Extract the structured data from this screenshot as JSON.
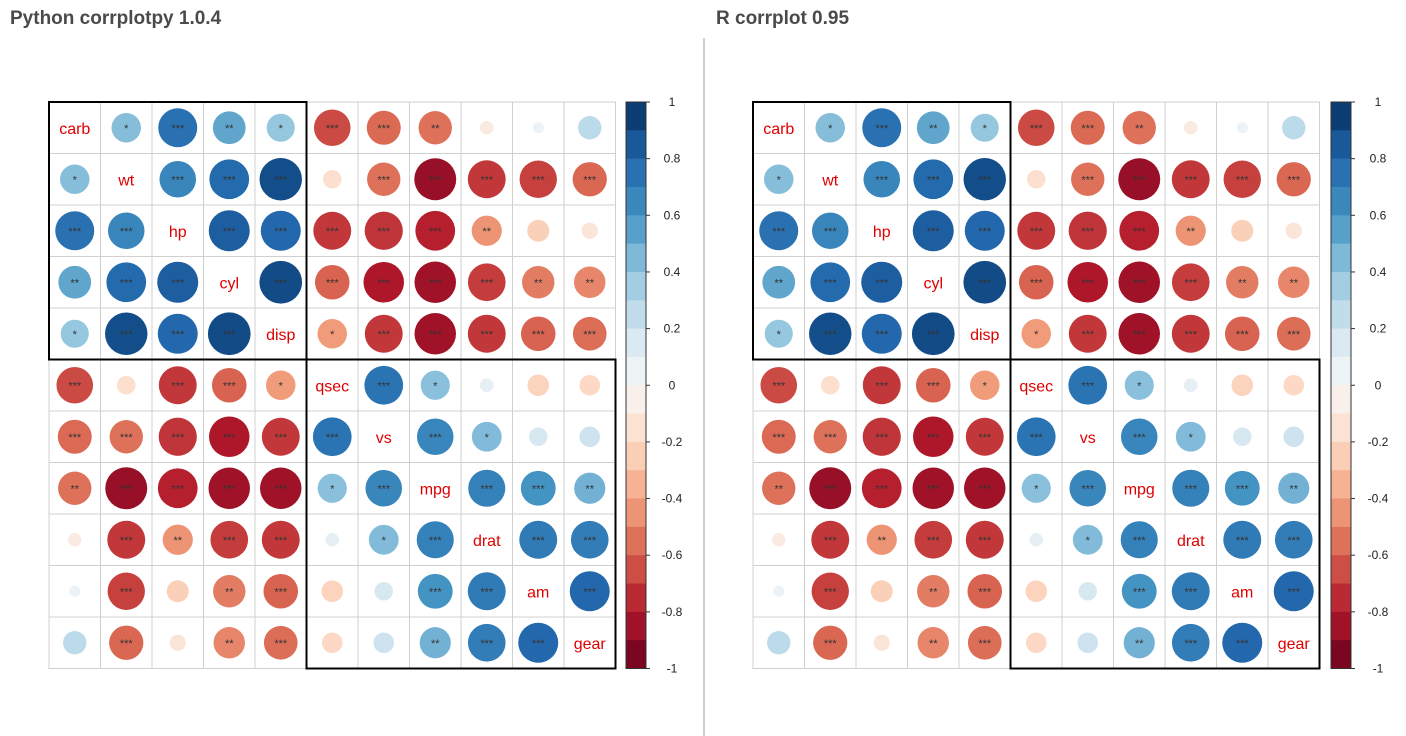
{
  "panels": [
    {
      "title": "Python corrplotpy 1.0.4"
    },
    {
      "title": "R corrplot 0.95"
    }
  ],
  "chart_data": [
    {
      "type": "heatmap",
      "variables": [
        "carb",
        "wt",
        "hp",
        "cyl",
        "disp",
        "qsec",
        "vs",
        "mpg",
        "drat",
        "am",
        "gear"
      ],
      "colorbar": {
        "ticks": [
          "1",
          "0.8",
          "0.6",
          "0.4",
          "0.2",
          "0",
          "-0.2",
          "-0.4",
          "-0.6",
          "-0.8",
          "-1"
        ],
        "range": [
          -1,
          1
        ]
      },
      "clusters": [
        [
          0,
          4
        ],
        [
          5,
          10
        ]
      ],
      "values": [
        [
          1,
          0.43,
          0.75,
          0.53,
          0.39,
          -0.66,
          -0.57,
          -0.55,
          -0.09,
          0.06,
          0.27
        ],
        [
          0.43,
          1,
          0.66,
          0.78,
          0.89,
          -0.17,
          -0.55,
          -0.87,
          -0.71,
          -0.69,
          -0.58
        ],
        [
          0.75,
          0.66,
          1,
          0.83,
          0.79,
          -0.71,
          -0.72,
          -0.78,
          -0.45,
          -0.24,
          -0.13
        ],
        [
          0.53,
          0.78,
          0.83,
          1,
          0.9,
          -0.59,
          -0.81,
          -0.85,
          -0.7,
          -0.52,
          -0.49
        ],
        [
          0.39,
          0.89,
          0.79,
          0.9,
          1,
          -0.43,
          -0.71,
          -0.85,
          -0.71,
          -0.59,
          -0.56
        ],
        [
          -0.66,
          -0.17,
          -0.71,
          -0.59,
          -0.43,
          1,
          0.74,
          0.42,
          0.09,
          -0.23,
          -0.21
        ],
        [
          -0.57,
          -0.55,
          -0.72,
          -0.81,
          -0.71,
          0.74,
          1,
          0.66,
          0.44,
          0.17,
          0.21
        ],
        [
          -0.55,
          -0.87,
          -0.78,
          -0.85,
          -0.85,
          0.42,
          0.66,
          1,
          0.68,
          0.6,
          0.48
        ],
        [
          -0.09,
          -0.71,
          -0.45,
          -0.7,
          -0.71,
          0.09,
          0.44,
          0.68,
          1,
          0.71,
          0.7
        ],
        [
          0.06,
          -0.69,
          -0.24,
          -0.52,
          -0.59,
          -0.23,
          0.17,
          0.6,
          0.71,
          1,
          0.79
        ],
        [
          0.27,
          -0.58,
          -0.13,
          -0.49,
          -0.56,
          -0.21,
          0.21,
          0.48,
          0.7,
          0.79,
          1
        ]
      ],
      "significance": [
        [
          "",
          "*",
          "***",
          "**",
          "*",
          "***",
          "***",
          "**",
          "",
          "",
          ""
        ],
        [
          "*",
          "",
          "***",
          "***",
          "***",
          "",
          "***",
          "***",
          "***",
          "***",
          "***"
        ],
        [
          "***",
          "***",
          "",
          "***",
          "***",
          "***",
          "***",
          "***",
          "**",
          "",
          ""
        ],
        [
          "**",
          "***",
          "***",
          "",
          "***",
          "***",
          "***",
          "***",
          "***",
          "**",
          "**"
        ],
        [
          "*",
          "***",
          "***",
          "***",
          "",
          "*",
          "***",
          "***",
          "***",
          "***",
          "***"
        ],
        [
          "***",
          "",
          "***",
          "***",
          "*",
          "",
          "***",
          "*",
          "",
          "",
          ""
        ],
        [
          "***",
          "***",
          "***",
          "***",
          "***",
          "***",
          "",
          "***",
          "*",
          "",
          ""
        ],
        [
          "**",
          "***",
          "***",
          "***",
          "***",
          "*",
          "***",
          "",
          "***",
          "***",
          "**"
        ],
        [
          "",
          "***",
          "**",
          "***",
          "***",
          "",
          "*",
          "***",
          "",
          "***",
          "***"
        ],
        [
          "",
          "***",
          "",
          "**",
          "***",
          "",
          "",
          "***",
          "***",
          "",
          "***"
        ],
        [
          "",
          "***",
          "",
          "**",
          "***",
          "",
          "",
          "**",
          "***",
          "***",
          ""
        ]
      ]
    },
    {
      "type": "heatmap",
      "variables": [
        "carb",
        "wt",
        "hp",
        "cyl",
        "disp",
        "qsec",
        "vs",
        "mpg",
        "drat",
        "am",
        "gear"
      ],
      "colorbar": {
        "ticks": [
          "1",
          "0.8",
          "0.6",
          "0.4",
          "0.2",
          "0",
          "-0.2",
          "-0.4",
          "-0.6",
          "-0.8",
          "-1"
        ],
        "range": [
          -1,
          1
        ]
      },
      "clusters": [
        [
          0,
          4
        ],
        [
          5,
          10
        ]
      ],
      "values": [
        [
          1,
          0.43,
          0.75,
          0.53,
          0.39,
          -0.66,
          -0.57,
          -0.55,
          -0.09,
          0.06,
          0.27
        ],
        [
          0.43,
          1,
          0.66,
          0.78,
          0.89,
          -0.17,
          -0.55,
          -0.87,
          -0.71,
          -0.69,
          -0.58
        ],
        [
          0.75,
          0.66,
          1,
          0.83,
          0.79,
          -0.71,
          -0.72,
          -0.78,
          -0.45,
          -0.24,
          -0.13
        ],
        [
          0.53,
          0.78,
          0.83,
          1,
          0.9,
          -0.59,
          -0.81,
          -0.85,
          -0.7,
          -0.52,
          -0.49
        ],
        [
          0.39,
          0.89,
          0.79,
          0.9,
          1,
          -0.43,
          -0.71,
          -0.85,
          -0.71,
          -0.59,
          -0.56
        ],
        [
          -0.66,
          -0.17,
          -0.71,
          -0.59,
          -0.43,
          1,
          0.74,
          0.42,
          0.09,
          -0.23,
          -0.21
        ],
        [
          -0.57,
          -0.55,
          -0.72,
          -0.81,
          -0.71,
          0.74,
          1,
          0.66,
          0.44,
          0.17,
          0.21
        ],
        [
          -0.55,
          -0.87,
          -0.78,
          -0.85,
          -0.85,
          0.42,
          0.66,
          1,
          0.68,
          0.6,
          0.48
        ],
        [
          -0.09,
          -0.71,
          -0.45,
          -0.7,
          -0.71,
          0.09,
          0.44,
          0.68,
          1,
          0.71,
          0.7
        ],
        [
          0.06,
          -0.69,
          -0.24,
          -0.52,
          -0.59,
          -0.23,
          0.17,
          0.6,
          0.71,
          1,
          0.79
        ],
        [
          0.27,
          -0.58,
          -0.13,
          -0.49,
          -0.56,
          -0.21,
          0.21,
          0.48,
          0.7,
          0.79,
          1
        ]
      ],
      "significance": [
        [
          "",
          "*",
          "***",
          "**",
          "*",
          "***",
          "***",
          "**",
          "",
          "",
          ""
        ],
        [
          "*",
          "",
          "***",
          "***",
          "***",
          "",
          "***",
          "***",
          "***",
          "***",
          "***"
        ],
        [
          "***",
          "***",
          "",
          "***",
          "***",
          "***",
          "***",
          "***",
          "**",
          "",
          ""
        ],
        [
          "**",
          "***",
          "***",
          "",
          "***",
          "***",
          "***",
          "***",
          "***",
          "**",
          "**"
        ],
        [
          "*",
          "***",
          "***",
          "***",
          "",
          "*",
          "***",
          "***",
          "***",
          "***",
          "***"
        ],
        [
          "***",
          "",
          "***",
          "***",
          "*",
          "",
          "***",
          "*",
          "",
          "",
          ""
        ],
        [
          "***",
          "***",
          "***",
          "***",
          "***",
          "***",
          "",
          "***",
          "*",
          "",
          ""
        ],
        [
          "**",
          "***",
          "***",
          "***",
          "***",
          "*",
          "***",
          "",
          "***",
          "***",
          "**"
        ],
        [
          "",
          "***",
          "**",
          "***",
          "***",
          "",
          "*",
          "***",
          "",
          "***",
          "***"
        ],
        [
          "",
          "***",
          "",
          "**",
          "***",
          "",
          "",
          "***",
          "***",
          "",
          "***"
        ],
        [
          "",
          "***",
          "",
          "**",
          "***",
          "",
          "",
          "**",
          "***",
          "***",
          ""
        ]
      ]
    }
  ]
}
